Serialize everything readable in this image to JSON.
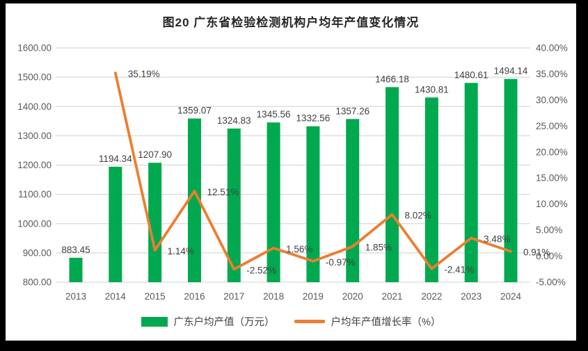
{
  "chart_data": {
    "type": "bar+line",
    "title": "图20 广东省检验检测机构户均年产值变化情况",
    "categories": [
      "2013",
      "2014",
      "2015",
      "2016",
      "2017",
      "2018",
      "2019",
      "2020",
      "2021",
      "2022",
      "2023",
      "2024"
    ],
    "series": [
      {
        "name": "广东户均产值（万元）",
        "type": "bar",
        "color": "#00A94F",
        "values": [
          883.45,
          1194.34,
          1207.9,
          1359.07,
          1324.83,
          1345.56,
          1332.56,
          1357.26,
          1466.18,
          1430.81,
          1480.61,
          1494.14
        ],
        "labels": [
          "883.45",
          "1194.34",
          "1207.90",
          "1359.07",
          "1324.83",
          "1345.56",
          "1332.56",
          "1357.26",
          "1466.18",
          "1430.81",
          "1480.61",
          "1494.14"
        ]
      },
      {
        "name": "户均年产值增长率（%）",
        "type": "line",
        "color": "#ED7D31",
        "values": [
          null,
          35.19,
          1.14,
          12.51,
          -2.52,
          1.56,
          -0.97,
          1.85,
          8.02,
          -2.41,
          3.48,
          0.91
        ],
        "labels": [
          null,
          "35.19%",
          "1.14%",
          "12.51%",
          "-2.52%",
          "1.56%",
          "-0.97%",
          "1.85%",
          "8.02%",
          "-2.41%",
          "3.48%",
          "0.91%"
        ]
      }
    ],
    "left_axis": {
      "min": 800,
      "max": 1600,
      "step": 100,
      "tick_labels": [
        "800.00",
        "900.00",
        "1000.00",
        "1100.00",
        "1200.00",
        "1300.00",
        "1400.00",
        "1500.00",
        "1600.00"
      ]
    },
    "right_axis": {
      "min": -5,
      "max": 40,
      "step": 5,
      "tick_labels": [
        "-5.00%",
        "0.00%",
        "5.00%",
        "10.00%",
        "15.00%",
        "20.00%",
        "25.00%",
        "30.00%",
        "35.00%",
        "40.00%"
      ]
    },
    "grid": true,
    "legend_position": "bottom",
    "colors": {
      "grid": "#D9D9D9",
      "axis_text": "#595959",
      "label_text": "#404040",
      "title_text": "#262626",
      "frame_border": "#000000",
      "background": "#ffffff"
    }
  }
}
